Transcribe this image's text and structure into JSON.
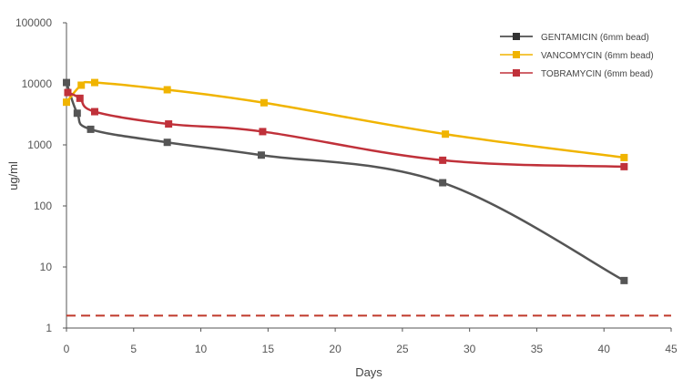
{
  "chart_data": {
    "type": "line",
    "xlabel": "Days",
    "ylabel": "ug/ml",
    "xlim": [
      0,
      45
    ],
    "ylim": [
      1,
      100000
    ],
    "yscale": "log",
    "x_ticks": [
      "0",
      "5",
      "10",
      "15",
      "20",
      "25",
      "30",
      "35",
      "40",
      "45"
    ],
    "y_ticks": [
      "100000",
      "10000",
      "1000",
      "100",
      "10",
      "1"
    ],
    "legend_position": "top-right",
    "threshold_line": {
      "y": 1.6,
      "color": "#c0392b",
      "style": "dashed"
    },
    "series": [
      {
        "name": "GENTAMICIN (6mm bead)",
        "color": "#555555",
        "x": [
          0,
          0.8,
          1.8,
          7.5,
          14.5,
          28,
          41.5
        ],
        "y": [
          10500,
          3300,
          1800,
          1100,
          680,
          240,
          6
        ]
      },
      {
        "name": "VANCOMYCIN (6mm bead)",
        "color": "#f0b400",
        "x": [
          0,
          1.1,
          2.1,
          7.5,
          14.7,
          28.2,
          41.5
        ],
        "y": [
          5000,
          9500,
          10500,
          8000,
          4900,
          1500,
          620
        ]
      },
      {
        "name": "TOBRAMYCIN (6mm bead)",
        "color": "#c0313a",
        "x": [
          0.1,
          1,
          2.1,
          7.6,
          14.6,
          28,
          41.5
        ],
        "y": [
          7200,
          5800,
          3500,
          2200,
          1650,
          560,
          440
        ]
      }
    ]
  }
}
